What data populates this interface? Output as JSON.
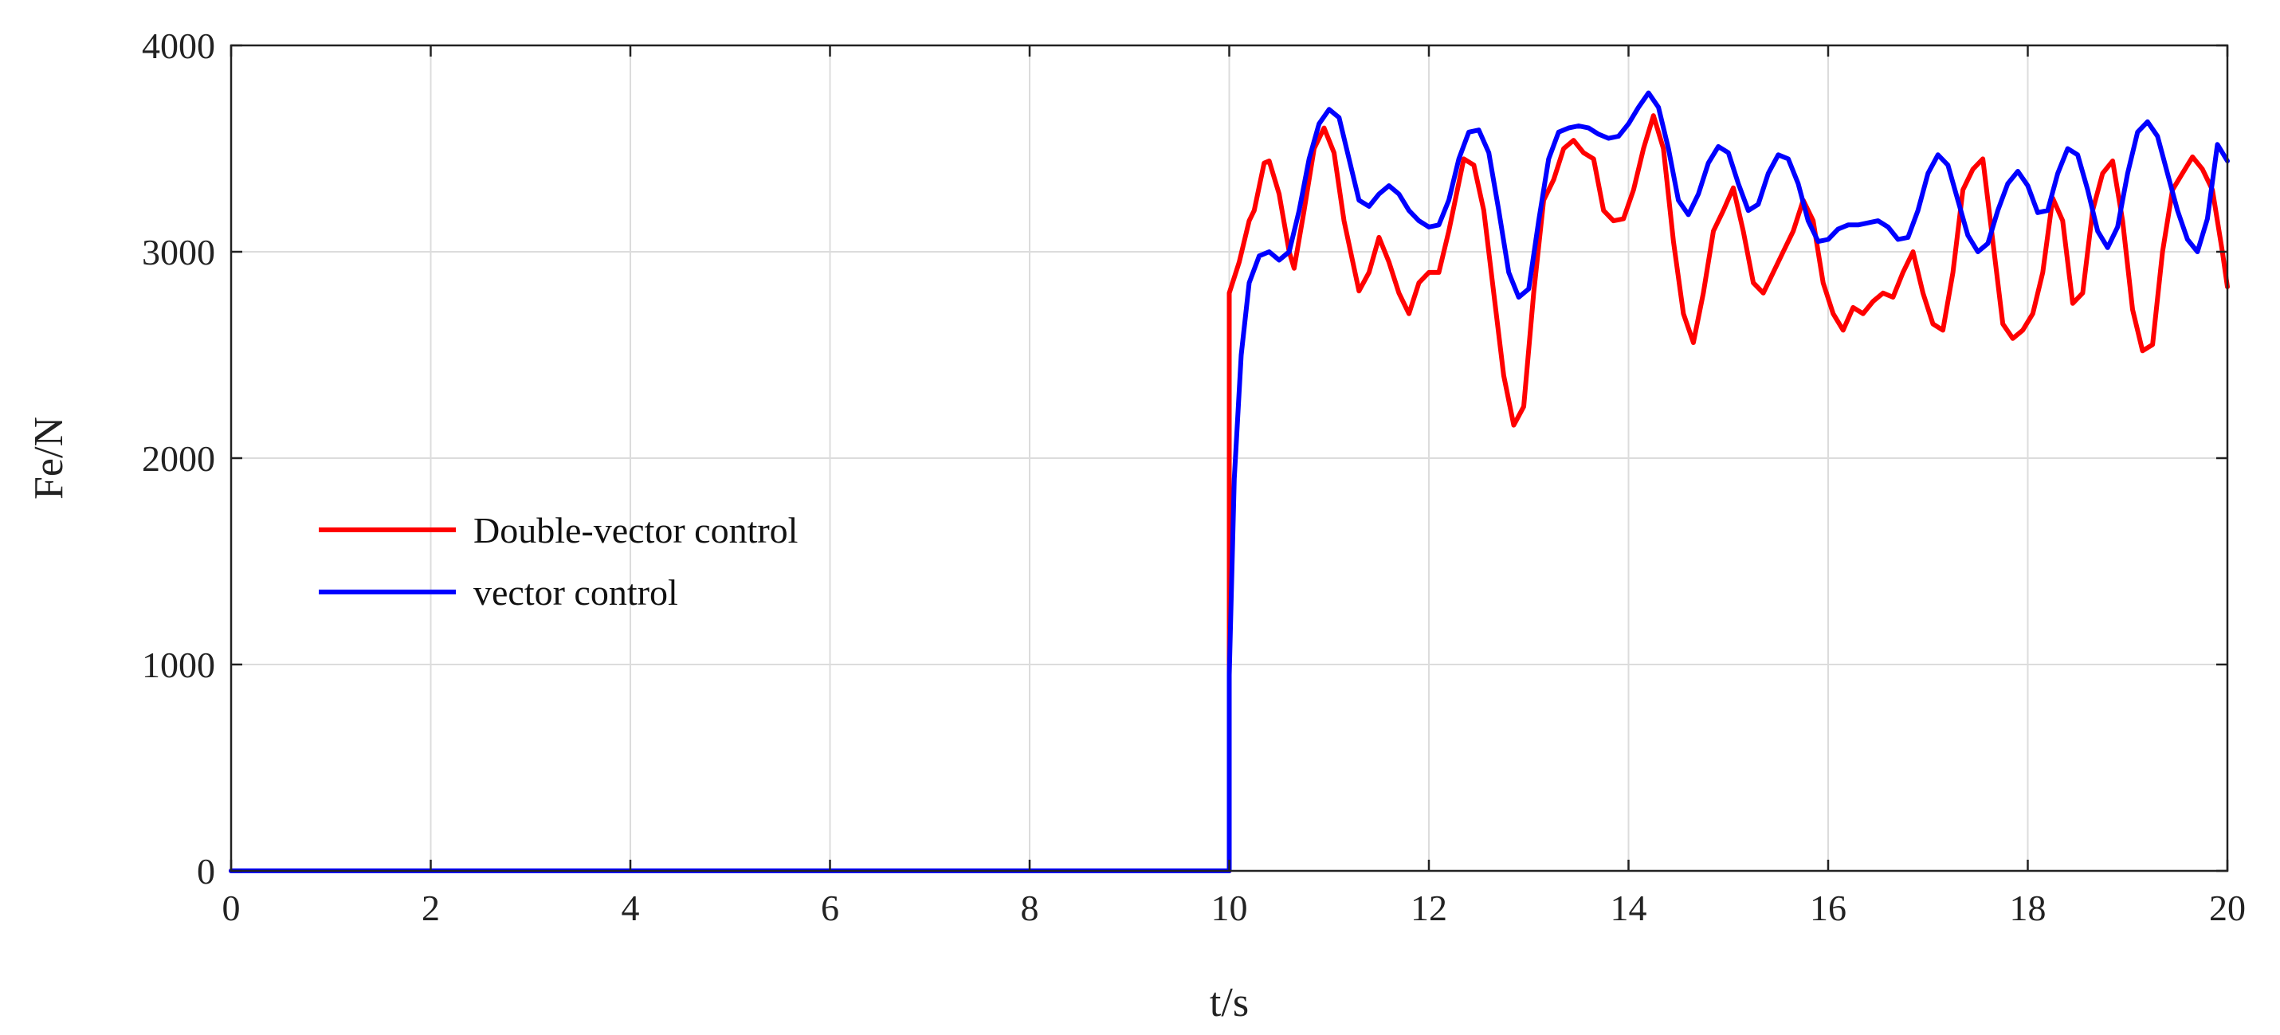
{
  "chart_data": {
    "type": "line",
    "title": "",
    "xlabel": "t/s",
    "ylabel": "Fe/N",
    "xlim": [
      0,
      20
    ],
    "ylim": [
      0,
      4000
    ],
    "xticks": [
      0,
      2,
      4,
      6,
      8,
      10,
      12,
      14,
      16,
      18,
      20
    ],
    "yticks": [
      0,
      1000,
      2000,
      3000,
      4000
    ],
    "grid": true,
    "legend_position": "left",
    "series": [
      {
        "name": "Double-vector control",
        "color": "#ff0000",
        "points": [
          [
            0,
            0
          ],
          [
            10,
            0
          ],
          [
            10.0,
            2800
          ],
          [
            10.1,
            2950
          ],
          [
            10.2,
            3150
          ],
          [
            10.25,
            3200
          ],
          [
            10.35,
            3430
          ],
          [
            10.4,
            3440
          ],
          [
            10.5,
            3280
          ],
          [
            10.6,
            3000
          ],
          [
            10.65,
            2920
          ],
          [
            10.75,
            3200
          ],
          [
            10.85,
            3500
          ],
          [
            10.95,
            3600
          ],
          [
            11.05,
            3480
          ],
          [
            11.15,
            3150
          ],
          [
            11.3,
            2810
          ],
          [
            11.4,
            2900
          ],
          [
            11.5,
            3070
          ],
          [
            11.6,
            2950
          ],
          [
            11.7,
            2800
          ],
          [
            11.8,
            2700
          ],
          [
            11.9,
            2850
          ],
          [
            12.0,
            2900
          ],
          [
            12.1,
            2900
          ],
          [
            12.2,
            3100
          ],
          [
            12.35,
            3450
          ],
          [
            12.45,
            3420
          ],
          [
            12.55,
            3200
          ],
          [
            12.65,
            2800
          ],
          [
            12.75,
            2400
          ],
          [
            12.85,
            2160
          ],
          [
            12.95,
            2250
          ],
          [
            13.05,
            2800
          ],
          [
            13.15,
            3250
          ],
          [
            13.25,
            3350
          ],
          [
            13.35,
            3500
          ],
          [
            13.45,
            3540
          ],
          [
            13.55,
            3480
          ],
          [
            13.65,
            3450
          ],
          [
            13.75,
            3200
          ],
          [
            13.85,
            3150
          ],
          [
            13.95,
            3160
          ],
          [
            14.05,
            3300
          ],
          [
            14.15,
            3500
          ],
          [
            14.25,
            3660
          ],
          [
            14.35,
            3500
          ],
          [
            14.45,
            3050
          ],
          [
            14.55,
            2700
          ],
          [
            14.65,
            2560
          ],
          [
            14.75,
            2800
          ],
          [
            14.85,
            3100
          ],
          [
            14.95,
            3200
          ],
          [
            15.05,
            3310
          ],
          [
            15.15,
            3100
          ],
          [
            15.25,
            2850
          ],
          [
            15.35,
            2800
          ],
          [
            15.45,
            2900
          ],
          [
            15.55,
            3000
          ],
          [
            15.65,
            3100
          ],
          [
            15.75,
            3250
          ],
          [
            15.85,
            3150
          ],
          [
            15.95,
            2850
          ],
          [
            16.05,
            2700
          ],
          [
            16.15,
            2620
          ],
          [
            16.25,
            2730
          ],
          [
            16.35,
            2700
          ],
          [
            16.45,
            2760
          ],
          [
            16.55,
            2800
          ],
          [
            16.65,
            2780
          ],
          [
            16.75,
            2900
          ],
          [
            16.85,
            3000
          ],
          [
            16.95,
            2800
          ],
          [
            17.05,
            2650
          ],
          [
            17.15,
            2620
          ],
          [
            17.25,
            2900
          ],
          [
            17.35,
            3300
          ],
          [
            17.45,
            3400
          ],
          [
            17.55,
            3450
          ],
          [
            17.65,
            3050
          ],
          [
            17.75,
            2650
          ],
          [
            17.85,
            2580
          ],
          [
            17.95,
            2620
          ],
          [
            18.05,
            2700
          ],
          [
            18.15,
            2900
          ],
          [
            18.25,
            3260
          ],
          [
            18.35,
            3150
          ],
          [
            18.45,
            2750
          ],
          [
            18.55,
            2800
          ],
          [
            18.65,
            3200
          ],
          [
            18.75,
            3380
          ],
          [
            18.85,
            3440
          ],
          [
            18.95,
            3150
          ],
          [
            19.05,
            2720
          ],
          [
            19.15,
            2520
          ],
          [
            19.25,
            2550
          ],
          [
            19.35,
            3000
          ],
          [
            19.45,
            3300
          ],
          [
            19.55,
            3380
          ],
          [
            19.65,
            3460
          ],
          [
            19.75,
            3400
          ],
          [
            19.85,
            3300
          ],
          [
            19.95,
            3000
          ],
          [
            20.0,
            2830
          ]
        ]
      },
      {
        "name": "vector control",
        "color": "#0000ff",
        "points": [
          [
            0,
            0
          ],
          [
            10,
            0
          ],
          [
            10.0,
            950
          ],
          [
            10.05,
            1900
          ],
          [
            10.12,
            2500
          ],
          [
            10.2,
            2850
          ],
          [
            10.3,
            2980
          ],
          [
            10.4,
            3000
          ],
          [
            10.5,
            2960
          ],
          [
            10.6,
            3000
          ],
          [
            10.7,
            3200
          ],
          [
            10.8,
            3450
          ],
          [
            10.9,
            3620
          ],
          [
            11.0,
            3690
          ],
          [
            11.1,
            3650
          ],
          [
            11.2,
            3450
          ],
          [
            11.3,
            3250
          ],
          [
            11.4,
            3220
          ],
          [
            11.5,
            3280
          ],
          [
            11.6,
            3320
          ],
          [
            11.7,
            3280
          ],
          [
            11.8,
            3200
          ],
          [
            11.9,
            3150
          ],
          [
            12.0,
            3120
          ],
          [
            12.1,
            3130
          ],
          [
            12.2,
            3250
          ],
          [
            12.3,
            3450
          ],
          [
            12.4,
            3580
          ],
          [
            12.5,
            3590
          ],
          [
            12.6,
            3480
          ],
          [
            12.7,
            3200
          ],
          [
            12.8,
            2900
          ],
          [
            12.9,
            2780
          ],
          [
            13.0,
            2820
          ],
          [
            13.1,
            3150
          ],
          [
            13.2,
            3450
          ],
          [
            13.3,
            3580
          ],
          [
            13.4,
            3600
          ],
          [
            13.5,
            3610
          ],
          [
            13.6,
            3600
          ],
          [
            13.7,
            3570
          ],
          [
            13.8,
            3550
          ],
          [
            13.9,
            3560
          ],
          [
            14.0,
            3620
          ],
          [
            14.1,
            3700
          ],
          [
            14.2,
            3770
          ],
          [
            14.3,
            3700
          ],
          [
            14.4,
            3500
          ],
          [
            14.5,
            3250
          ],
          [
            14.6,
            3180
          ],
          [
            14.7,
            3280
          ],
          [
            14.8,
            3430
          ],
          [
            14.9,
            3510
          ],
          [
            15.0,
            3480
          ],
          [
            15.1,
            3330
          ],
          [
            15.2,
            3200
          ],
          [
            15.3,
            3230
          ],
          [
            15.4,
            3380
          ],
          [
            15.5,
            3470
          ],
          [
            15.6,
            3450
          ],
          [
            15.7,
            3330
          ],
          [
            15.8,
            3150
          ],
          [
            15.9,
            3050
          ],
          [
            16.0,
            3060
          ],
          [
            16.1,
            3110
          ],
          [
            16.2,
            3130
          ],
          [
            16.3,
            3130
          ],
          [
            16.4,
            3140
          ],
          [
            16.5,
            3150
          ],
          [
            16.6,
            3120
          ],
          [
            16.7,
            3060
          ],
          [
            16.8,
            3070
          ],
          [
            16.9,
            3200
          ],
          [
            17.0,
            3380
          ],
          [
            17.1,
            3470
          ],
          [
            17.2,
            3420
          ],
          [
            17.3,
            3250
          ],
          [
            17.4,
            3080
          ],
          [
            17.5,
            3000
          ],
          [
            17.6,
            3040
          ],
          [
            17.7,
            3200
          ],
          [
            17.8,
            3330
          ],
          [
            17.9,
            3390
          ],
          [
            18.0,
            3320
          ],
          [
            18.1,
            3190
          ],
          [
            18.2,
            3200
          ],
          [
            18.3,
            3380
          ],
          [
            18.4,
            3500
          ],
          [
            18.5,
            3470
          ],
          [
            18.6,
            3300
          ],
          [
            18.7,
            3100
          ],
          [
            18.8,
            3020
          ],
          [
            18.9,
            3120
          ],
          [
            19.0,
            3380
          ],
          [
            19.1,
            3580
          ],
          [
            19.2,
            3630
          ],
          [
            19.3,
            3560
          ],
          [
            19.4,
            3380
          ],
          [
            19.5,
            3200
          ],
          [
            19.6,
            3060
          ],
          [
            19.7,
            3000
          ],
          [
            19.8,
            3160
          ],
          [
            19.9,
            3520
          ],
          [
            20.0,
            3440
          ]
        ]
      }
    ]
  }
}
